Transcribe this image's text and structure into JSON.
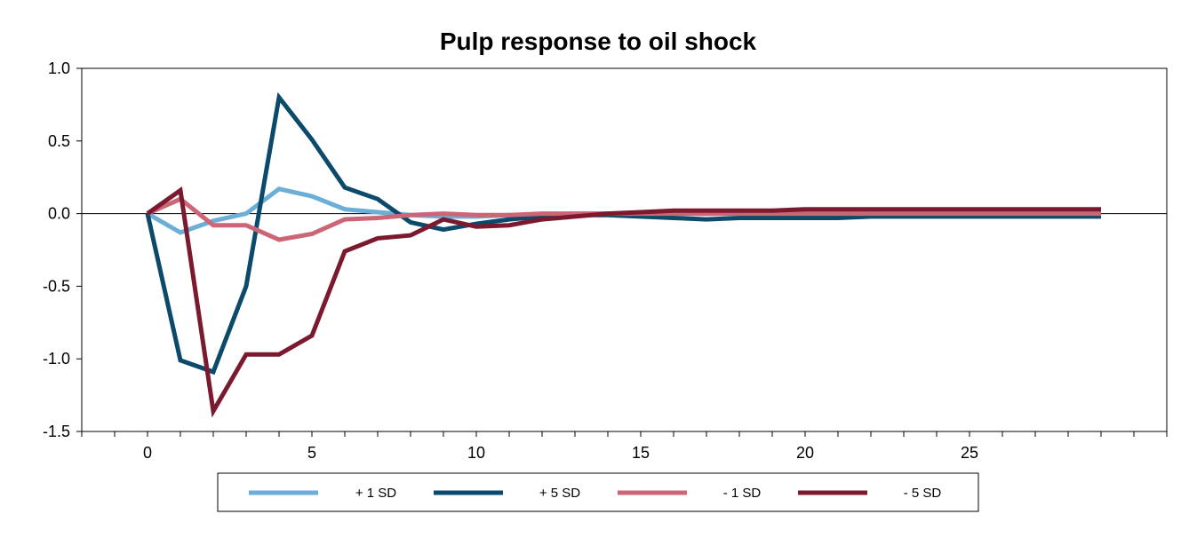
{
  "chart_data": {
    "type": "line",
    "title": "Pulp response to oil shock",
    "xlabel": "",
    "ylabel": "",
    "xlim": [
      -2,
      31
    ],
    "ylim": [
      -1.5,
      1.0
    ],
    "x_ticks": [
      0,
      5,
      10,
      15,
      20,
      25
    ],
    "y_ticks": [
      1.0,
      0.5,
      0.0,
      -0.5,
      -1.0,
      -1.5
    ],
    "y_tick_labels": [
      "1.0",
      "0.5",
      "0.0",
      "-0.5",
      "-1.0",
      "-1.5"
    ],
    "grid": false,
    "legend_position": "bottom",
    "x": [
      0,
      1,
      2,
      3,
      4,
      5,
      6,
      7,
      8,
      9,
      10,
      11,
      12,
      13,
      14,
      15,
      16,
      17,
      18,
      19,
      20,
      21,
      22,
      23,
      24,
      25,
      26,
      27,
      28,
      29
    ],
    "series": [
      {
        "name": "+ 1 SD",
        "color": "#6BAED6",
        "values": [
          0,
          -0.13,
          -0.05,
          0.0,
          0.17,
          0.12,
          0.03,
          0.01,
          -0.01,
          -0.02,
          -0.02,
          -0.01,
          -0.01,
          0,
          0,
          0,
          0,
          0,
          0,
          0,
          0,
          0,
          0,
          0,
          0,
          0,
          0,
          0,
          0,
          0
        ]
      },
      {
        "name": "+ 5 SD",
        "color": "#0B4A6B",
        "values": [
          0,
          -1.01,
          -1.09,
          -0.5,
          0.8,
          0.51,
          0.18,
          0.1,
          -0.06,
          -0.11,
          -0.07,
          -0.04,
          -0.02,
          -0.01,
          -0.01,
          -0.02,
          -0.03,
          -0.04,
          -0.03,
          -0.03,
          -0.03,
          -0.03,
          -0.02,
          -0.02,
          -0.02,
          -0.02,
          -0.02,
          -0.02,
          -0.02,
          -0.02
        ]
      },
      {
        "name": "- 1 SD",
        "color": "#CC6677",
        "values": [
          0,
          0.1,
          -0.08,
          -0.08,
          -0.18,
          -0.14,
          -0.04,
          -0.03,
          -0.01,
          0.0,
          -0.01,
          -0.01,
          0,
          0,
          0,
          0,
          0,
          0,
          0,
          0,
          0,
          0,
          0,
          0,
          0,
          0,
          0,
          0,
          0,
          0
        ]
      },
      {
        "name": "- 5 SD",
        "color": "#7B1A2E",
        "values": [
          0,
          0.16,
          -1.36,
          -0.97,
          -0.97,
          -0.84,
          -0.26,
          -0.17,
          -0.15,
          -0.04,
          -0.09,
          -0.08,
          -0.04,
          -0.02,
          0.0,
          0.01,
          0.02,
          0.02,
          0.02,
          0.02,
          0.03,
          0.03,
          0.03,
          0.03,
          0.03,
          0.03,
          0.03,
          0.03,
          0.03,
          0.03
        ]
      }
    ]
  }
}
